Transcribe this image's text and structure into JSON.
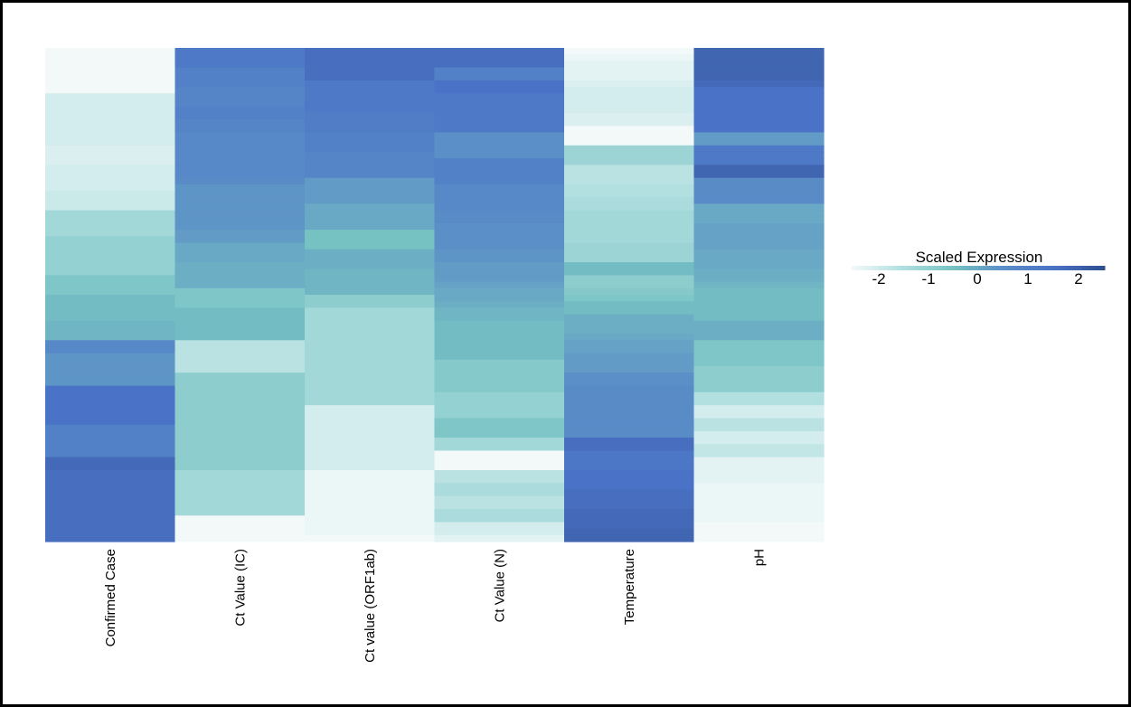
{
  "chart_data": {
    "type": "heatmap",
    "title": "",
    "xlabel": "",
    "ylabel": "",
    "columns": [
      "Confirmed Case",
      "Ct Value (IC)",
      "Ct value (ORF1ab)",
      "Ct Value (N)",
      "Temperature",
      "pH"
    ],
    "rows": 76,
    "matrix": [
      [
        -2.0,
        -2.0,
        -2.0,
        -2.0,
        -2.0,
        -2.0,
        -2.0,
        -1.6,
        -1.6,
        -1.6,
        -1.6,
        -1.6,
        -1.6,
        -1.6,
        -1.6,
        -1.7,
        -1.7,
        -1.7,
        -1.6,
        -1.6,
        -1.6,
        -1.6,
        -1.5,
        -1.5,
        -1.5,
        -1.0,
        -1.0,
        -1.0,
        -1.0,
        -0.8,
        -0.8,
        -0.8,
        -0.8,
        -0.8,
        -0.8,
        -0.5,
        -0.5,
        -0.5,
        -0.3,
        -0.3,
        -0.3,
        -0.3,
        -0.2,
        -0.2,
        -0.2,
        0.6,
        0.6,
        0.3,
        0.3,
        0.3,
        0.3,
        0.3,
        1.2,
        1.2,
        1.2,
        1.2,
        1.2,
        1.2,
        0.8,
        0.8,
        0.8,
        0.8,
        0.8,
        1.4,
        1.4,
        1.3,
        1.3,
        1.3,
        1.3,
        1.3,
        1.3,
        1.3,
        1.3,
        1.3,
        1.3,
        1.3
      ],
      [
        1.0,
        1.0,
        1.0,
        0.8,
        0.8,
        0.8,
        0.7,
        0.7,
        0.7,
        0.8,
        0.8,
        0.7,
        0.7,
        0.6,
        0.6,
        0.6,
        0.6,
        0.6,
        0.6,
        0.6,
        0.5,
        0.3,
        0.3,
        0.3,
        0.3,
        0.3,
        0.3,
        0.3,
        0.2,
        0.2,
        0.0,
        0.0,
        0.0,
        -0.1,
        -0.1,
        -0.1,
        -0.1,
        -0.5,
        -0.5,
        -0.5,
        -0.3,
        -0.3,
        -0.3,
        -0.3,
        -0.3,
        -1.3,
        -1.3,
        -1.3,
        -1.3,
        -1.3,
        -0.7,
        -0.7,
        -0.7,
        -0.7,
        -0.7,
        -0.7,
        -0.7,
        -0.7,
        -0.7,
        -0.7,
        -0.7,
        -0.7,
        -0.7,
        -0.7,
        -0.7,
        -1.0,
        -1.0,
        -1.0,
        -1.0,
        -1.0,
        -1.0,
        -1.0,
        -2.0,
        -2.0,
        -2.0,
        -2.0
      ],
      [
        1.3,
        1.3,
        1.3,
        1.3,
        1.3,
        1.0,
        1.0,
        1.0,
        1.0,
        1.0,
        0.9,
        0.9,
        0.9,
        0.8,
        0.8,
        0.8,
        0.7,
        0.7,
        0.7,
        0.7,
        0.2,
        0.2,
        0.2,
        0.2,
        0.0,
        0.0,
        0.0,
        0.0,
        -0.4,
        -0.4,
        -0.4,
        -0.1,
        -0.1,
        -0.1,
        -0.2,
        -0.2,
        -0.2,
        -0.2,
        -0.7,
        -0.7,
        -1.0,
        -1.0,
        -1.0,
        -1.0,
        -1.0,
        -1.0,
        -1.0,
        -1.0,
        -1.0,
        -1.0,
        -1.0,
        -1.0,
        -1.0,
        -1.0,
        -1.0,
        -1.6,
        -1.6,
        -1.6,
        -1.6,
        -1.6,
        -1.6,
        -1.6,
        -1.6,
        -1.6,
        -1.6,
        -1.9,
        -1.9,
        -1.9,
        -1.9,
        -1.9,
        -1.9,
        -1.9,
        -1.9,
        -1.9,
        -1.9,
        -2.0
      ],
      [
        1.3,
        1.3,
        1.3,
        0.8,
        0.8,
        1.2,
        1.2,
        1.0,
        1.0,
        1.0,
        1.0,
        1.0,
        1.0,
        0.4,
        0.4,
        0.4,
        0.4,
        0.8,
        0.8,
        0.8,
        0.8,
        0.6,
        0.6,
        0.6,
        0.6,
        0.5,
        0.5,
        0.4,
        0.4,
        0.4,
        0.4,
        0.3,
        0.3,
        0.2,
        0.2,
        0.2,
        0.1,
        0.0,
        0.0,
        -0.1,
        -0.2,
        -0.2,
        -0.3,
        -0.3,
        -0.3,
        -0.3,
        -0.3,
        -0.3,
        -0.6,
        -0.6,
        -0.6,
        -0.6,
        -0.6,
        -0.8,
        -0.8,
        -0.8,
        -0.8,
        -0.5,
        -0.5,
        -0.5,
        -1.0,
        -1.0,
        -2.0,
        -2.0,
        -2.0,
        -1.3,
        -1.3,
        -1.1,
        -1.1,
        -1.3,
        -1.3,
        -1.1,
        -1.1,
        -1.6,
        -1.6,
        -1.8
      ],
      [
        -2.0,
        -1.9,
        -1.8,
        -1.8,
        -1.8,
        -1.7,
        -1.6,
        -1.6,
        -1.6,
        -1.6,
        -1.7,
        -1.7,
        -2.0,
        -2.0,
        -2.0,
        -0.9,
        -0.9,
        -0.9,
        -1.3,
        -1.3,
        -1.3,
        -1.2,
        -1.2,
        -1.1,
        -1.1,
        -1.0,
        -1.0,
        -1.0,
        -1.0,
        -1.0,
        -0.9,
        -0.9,
        -0.9,
        -0.3,
        -0.3,
        -0.7,
        -0.7,
        -0.6,
        -0.5,
        -0.3,
        -0.3,
        -0.1,
        -0.1,
        -0.1,
        0.0,
        0.1,
        0.1,
        0.2,
        0.2,
        0.2,
        0.4,
        0.4,
        0.5,
        0.5,
        0.5,
        0.5,
        0.5,
        0.5,
        0.5,
        0.5,
        1.3,
        1.3,
        1.1,
        1.1,
        1.1,
        1.2,
        1.2,
        1.2,
        1.3,
        1.3,
        1.3,
        1.4,
        1.4,
        1.4,
        1.5,
        1.5
      ],
      [
        1.5,
        1.5,
        1.5,
        1.5,
        1.5,
        1.4,
        1.2,
        1.2,
        1.2,
        1.2,
        1.2,
        1.2,
        1.2,
        0.2,
        0.2,
        1.0,
        1.0,
        1.0,
        1.5,
        1.5,
        0.5,
        0.5,
        0.5,
        0.5,
        0.0,
        0.0,
        0.0,
        0.1,
        0.1,
        0.1,
        0.1,
        0.0,
        0.0,
        0.0,
        -0.1,
        -0.1,
        -0.2,
        -0.3,
        -0.3,
        -0.3,
        -0.3,
        -0.3,
        -0.1,
        -0.1,
        -0.1,
        -0.5,
        -0.5,
        -0.5,
        -0.5,
        -0.7,
        -0.7,
        -0.7,
        -0.7,
        -1.2,
        -1.2,
        -1.6,
        -1.6,
        -1.3,
        -1.3,
        -1.6,
        -1.6,
        -1.4,
        -1.4,
        -1.8,
        -1.8,
        -1.8,
        -1.8,
        -1.9,
        -1.9,
        -1.9,
        -1.9,
        -1.9,
        -1.9,
        -2.0,
        -2.0,
        -2.0
      ]
    ],
    "colorbar": {
      "title": "Scaled Expression",
      "ticks": [
        "-2",
        "-1",
        "0",
        "1",
        "2"
      ],
      "range": [
        -2,
        2
      ],
      "colors": [
        "#f3f9f9",
        "#b2dfe0",
        "#76c2c3",
        "#5b8fc7",
        "#4a72c6",
        "#2e4e8f"
      ]
    }
  }
}
